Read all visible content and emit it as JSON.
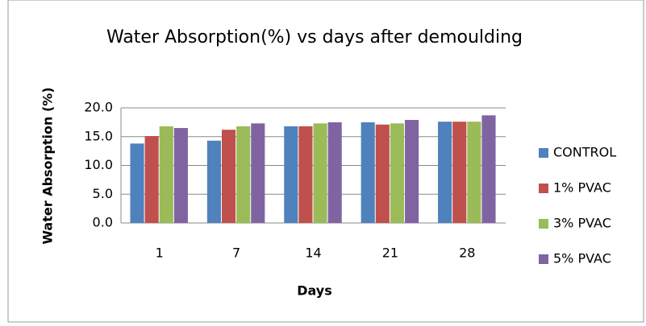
{
  "chart_data": {
    "type": "bar",
    "title": "Water Absorption(%) vs days after demoulding",
    "x_label": "Days",
    "y_label": "Water Absorption (%)",
    "categories": [
      "1",
      "7",
      "14",
      "21",
      "28"
    ],
    "series": [
      {
        "name": "CONTROL",
        "color": "#4f81bd",
        "values": [
          13.8,
          14.3,
          16.8,
          17.5,
          17.6
        ]
      },
      {
        "name": "1% PVAC",
        "color": "#c0504d",
        "values": [
          15.1,
          16.2,
          16.8,
          17.1,
          17.6
        ]
      },
      {
        "name": "3% PVAC",
        "color": "#9bbb59",
        "values": [
          16.8,
          16.8,
          17.3,
          17.3,
          17.6
        ]
      },
      {
        "name": "5% PVAC",
        "color": "#8064a2",
        "values": [
          16.5,
          17.3,
          17.5,
          17.9,
          18.7
        ]
      }
    ],
    "ylim": [
      0,
      20
    ],
    "yticks": [
      {
        "value": 0,
        "label": "0.0"
      },
      {
        "value": 5,
        "label": "5.0"
      },
      {
        "value": 10,
        "label": "10.0"
      },
      {
        "value": 15,
        "label": "15.0"
      },
      {
        "value": 20,
        "label": "20.0"
      }
    ],
    "grid": true,
    "legend": "right"
  }
}
